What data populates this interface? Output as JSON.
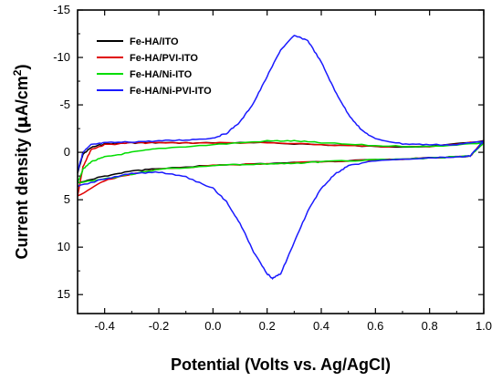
{
  "chart_data": {
    "type": "line",
    "xlabel": "Potential (Volts vs. Ag/AgCl)",
    "ylabel": "Current density (μA/cm²)",
    "ylabel_parts": {
      "prefix": "Current density (",
      "mu": "μ",
      "unit": "A/cm",
      "sup": "2",
      "suffix": ")"
    },
    "xlim": [
      -0.5,
      1.0
    ],
    "ylim": [
      -15,
      17
    ],
    "y_inverted": true,
    "x_ticks": [
      "-0.4",
      "-0.2",
      "0.0",
      "0.2",
      "0.4",
      "0.6",
      "0.8",
      "1.0"
    ],
    "y_ticks": [
      "-15",
      "-10",
      "-5",
      "0",
      "5",
      "10",
      "15"
    ],
    "grid": false,
    "legend_position": "top-left",
    "series": [
      {
        "name": "Fe-HA/ITO",
        "color": "#000000",
        "forward": [
          [
            -0.5,
            2.2
          ],
          [
            -0.48,
            0.2
          ],
          [
            -0.45,
            -0.5
          ],
          [
            -0.4,
            -0.9
          ],
          [
            -0.3,
            -1.0
          ],
          [
            -0.2,
            -1.0
          ],
          [
            0.0,
            -1.0
          ],
          [
            0.2,
            -1.0
          ],
          [
            0.4,
            -0.8
          ],
          [
            0.6,
            -0.6
          ],
          [
            0.8,
            -0.6
          ],
          [
            1.0,
            -1.2
          ]
        ],
        "reverse": [
          [
            1.0,
            -1.2
          ],
          [
            0.95,
            0.4
          ],
          [
            0.8,
            0.6
          ],
          [
            0.6,
            0.8
          ],
          [
            0.4,
            1.0
          ],
          [
            0.2,
            1.2
          ],
          [
            0.0,
            1.4
          ],
          [
            -0.2,
            1.7
          ],
          [
            -0.3,
            2.0
          ],
          [
            -0.4,
            2.5
          ],
          [
            -0.5,
            3.2
          ]
        ]
      },
      {
        "name": "Fe-HA/PVI-ITO",
        "color": "#e00000",
        "forward": [
          [
            -0.5,
            4.6
          ],
          [
            -0.48,
            1.5
          ],
          [
            -0.45,
            -0.3
          ],
          [
            -0.4,
            -0.8
          ],
          [
            -0.3,
            -1.0
          ],
          [
            -0.2,
            -1.0
          ],
          [
            0.0,
            -1.0
          ],
          [
            0.2,
            -1.0
          ],
          [
            0.4,
            -0.8
          ],
          [
            0.6,
            -0.6
          ],
          [
            0.8,
            -0.6
          ],
          [
            1.0,
            -1.2
          ]
        ],
        "reverse": [
          [
            1.0,
            -1.2
          ],
          [
            0.95,
            0.4
          ],
          [
            0.8,
            0.6
          ],
          [
            0.6,
            0.8
          ],
          [
            0.4,
            1.0
          ],
          [
            0.2,
            1.2
          ],
          [
            0.0,
            1.4
          ],
          [
            -0.2,
            1.8
          ],
          [
            -0.3,
            2.3
          ],
          [
            -0.4,
            3.0
          ],
          [
            -0.5,
            4.6
          ]
        ]
      },
      {
        "name": "Fe-HA/Ni-ITO",
        "color": "#00dd00",
        "forward": [
          [
            -0.5,
            3.2
          ],
          [
            -0.48,
            1.8
          ],
          [
            -0.45,
            1.0
          ],
          [
            -0.4,
            0.5
          ],
          [
            -0.3,
            0.0
          ],
          [
            -0.2,
            -0.4
          ],
          [
            0.0,
            -0.8
          ],
          [
            0.2,
            -1.2
          ],
          [
            0.3,
            -1.2
          ],
          [
            0.4,
            -1.0
          ],
          [
            0.6,
            -0.7
          ],
          [
            0.8,
            -0.6
          ],
          [
            1.0,
            -1.0
          ]
        ],
        "reverse": [
          [
            1.0,
            -1.0
          ],
          [
            0.95,
            0.4
          ],
          [
            0.8,
            0.6
          ],
          [
            0.6,
            0.8
          ],
          [
            0.4,
            1.0
          ],
          [
            0.3,
            1.2
          ],
          [
            0.2,
            1.2
          ],
          [
            0.0,
            1.4
          ],
          [
            -0.2,
            1.8
          ],
          [
            -0.3,
            2.3
          ],
          [
            -0.4,
            2.8
          ],
          [
            -0.5,
            3.2
          ]
        ]
      },
      {
        "name": "Fe-HA/Ni-PVI-ITO",
        "color": "#1a1aff",
        "forward": [
          [
            -0.5,
            2.0
          ],
          [
            -0.48,
            0.0
          ],
          [
            -0.45,
            -0.8
          ],
          [
            -0.4,
            -1.0
          ],
          [
            -0.3,
            -1.1
          ],
          [
            -0.2,
            -1.2
          ],
          [
            -0.1,
            -1.3
          ],
          [
            0.0,
            -1.5
          ],
          [
            0.05,
            -2.0
          ],
          [
            0.1,
            -3.2
          ],
          [
            0.15,
            -5.2
          ],
          [
            0.2,
            -8.0
          ],
          [
            0.25,
            -10.8
          ],
          [
            0.3,
            -12.3
          ],
          [
            0.35,
            -11.8
          ],
          [
            0.4,
            -9.5
          ],
          [
            0.45,
            -6.5
          ],
          [
            0.5,
            -4.0
          ],
          [
            0.55,
            -2.3
          ],
          [
            0.6,
            -1.4
          ],
          [
            0.7,
            -0.9
          ],
          [
            0.8,
            -0.8
          ],
          [
            0.9,
            -0.8
          ],
          [
            1.0,
            -1.2
          ]
        ],
        "reverse": [
          [
            1.0,
            -1.2
          ],
          [
            0.95,
            0.4
          ],
          [
            0.9,
            0.5
          ],
          [
            0.8,
            0.6
          ],
          [
            0.6,
            0.9
          ],
          [
            0.5,
            1.4
          ],
          [
            0.45,
            2.3
          ],
          [
            0.4,
            3.8
          ],
          [
            0.35,
            6.2
          ],
          [
            0.3,
            9.5
          ],
          [
            0.25,
            12.8
          ],
          [
            0.22,
            13.3
          ],
          [
            0.2,
            12.8
          ],
          [
            0.15,
            10.5
          ],
          [
            0.1,
            7.5
          ],
          [
            0.05,
            5.2
          ],
          [
            0.0,
            3.8
          ],
          [
            -0.1,
            2.6
          ],
          [
            -0.2,
            2.1
          ],
          [
            -0.3,
            2.2
          ],
          [
            -0.4,
            2.8
          ],
          [
            -0.5,
            3.6
          ]
        ]
      }
    ]
  }
}
